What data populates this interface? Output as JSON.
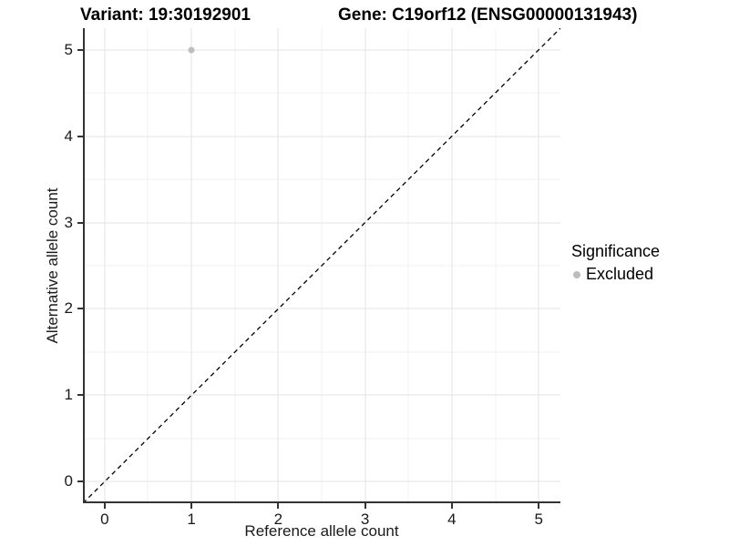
{
  "chart_data": {
    "type": "scatter",
    "title_left": "Variant: 19:30192901",
    "title_right": "Gene: C19orf12 (ENSG00000131943)",
    "xlabel": "Reference allele count",
    "ylabel": "Alternative allele count",
    "x_ticks": [
      0,
      1,
      2,
      3,
      4,
      5
    ],
    "y_ticks": [
      0,
      1,
      2,
      3,
      4,
      5
    ],
    "x_minor_ticks": [
      0.5,
      1.5,
      2.5,
      3.5,
      4.5
    ],
    "y_minor_ticks": [
      0.5,
      1.5,
      2.5,
      3.5,
      4.5
    ],
    "x_domain": [
      -0.25,
      5.25
    ],
    "y_domain": [
      -0.25,
      5.25
    ],
    "grid": true,
    "legend_position": "right",
    "points": [
      {
        "x": 1,
        "y": 5,
        "series": "Excluded"
      }
    ],
    "reference_line": {
      "type": "identity y = x",
      "style": "dashed",
      "color": "#000000"
    },
    "legend": {
      "title": "Significance",
      "items": [
        {
          "label": "Excluded",
          "color": "#bdbdbd",
          "marker": "circle"
        }
      ]
    },
    "colors": {
      "point": "#bdbdbd",
      "gridline_major": "#e3e3e3",
      "gridline_minor": "#f2f2f2",
      "axis": "#333333",
      "background": "#ffffff",
      "text": "#000000"
    }
  }
}
